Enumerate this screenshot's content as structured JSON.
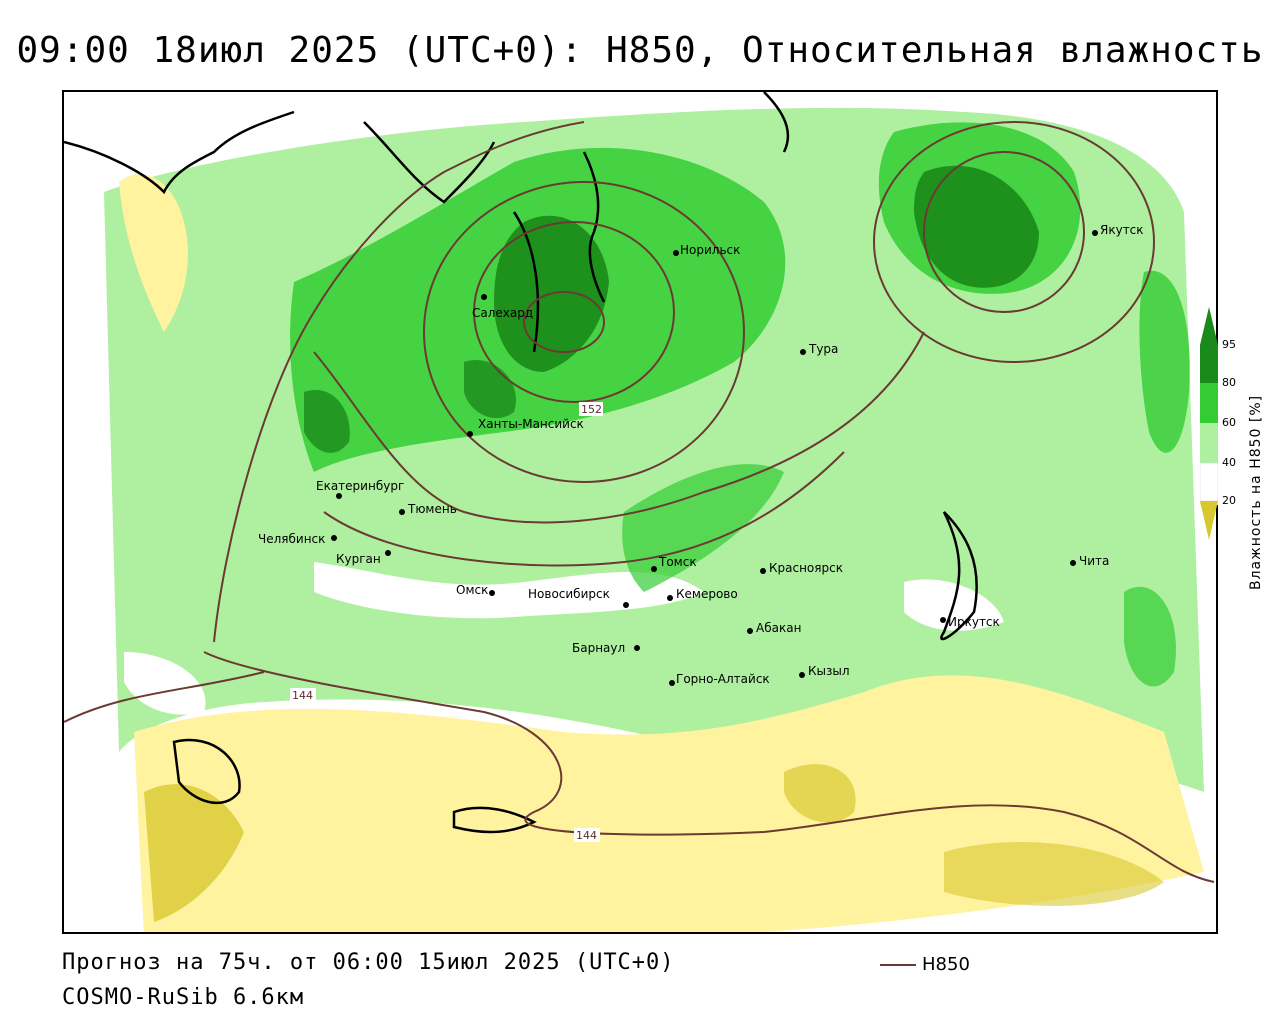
{
  "title": "09:00 18июл 2025 (UTC+0): H850, Относительная влажность",
  "footer": {
    "forecast": "Прогноз на 75ч. от 06:00 15июл 2025 (UTC+0)",
    "model": "COSMO-RuSib 6.6км"
  },
  "legend": {
    "contour_label": "H850"
  },
  "colorbar": {
    "title": "Влажность на H850 [%]",
    "ticks": [
      "95",
      "80",
      "60",
      "40",
      "20"
    ],
    "colors": {
      "c95": "#1a8a1a",
      "c80": "#33cc33",
      "c60": "#aef0a0",
      "c40": "#ffffff",
      "c20": "#fff3a0",
      "c0": "#d8c830"
    }
  },
  "contour_labels": [
    "152",
    "144",
    "144"
  ],
  "cities": [
    {
      "name": "Норильск"
    },
    {
      "name": "Якутск"
    },
    {
      "name": "Салехард"
    },
    {
      "name": "Тура"
    },
    {
      "name": "Ханты-Мансийск"
    },
    {
      "name": "Екатеринбург"
    },
    {
      "name": "Тюмень"
    },
    {
      "name": "Челябинск"
    },
    {
      "name": "Курган"
    },
    {
      "name": "Омск"
    },
    {
      "name": "Новосибирск"
    },
    {
      "name": "Томск"
    },
    {
      "name": "Кемерово"
    },
    {
      "name": "Красноярск"
    },
    {
      "name": "Барнаул"
    },
    {
      "name": "Абакан"
    },
    {
      "name": "Горно-Алтайск"
    },
    {
      "name": "Кызыл"
    },
    {
      "name": "Иркутск"
    },
    {
      "name": "Чита"
    }
  ]
}
